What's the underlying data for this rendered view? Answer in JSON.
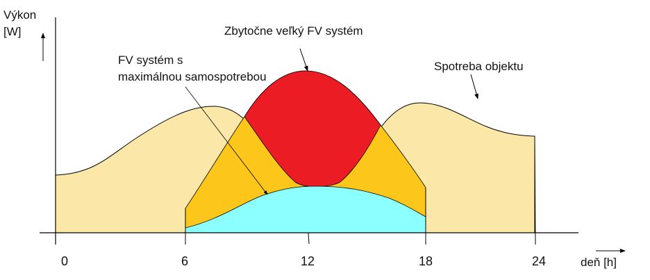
{
  "axes": {
    "y_label_line1": "Výkon",
    "y_label_line2": "[W]",
    "x_label": "deň [h]",
    "x_ticks": [
      "0",
      "6",
      "12",
      "18",
      "24"
    ]
  },
  "annotations": {
    "oversized_pv": "Zbytočne veľký FV systém",
    "optimal_pv_line1": "FV systém s",
    "optimal_pv_line2": "maximálnou samospotrebou",
    "consumption": "Spotreba objektu"
  },
  "colors": {
    "consumption": "#FBE8A8",
    "pv_large": "#FCC61A",
    "surplus": "#EC1C24",
    "pv_optimal": "#8CFFFF"
  }
}
